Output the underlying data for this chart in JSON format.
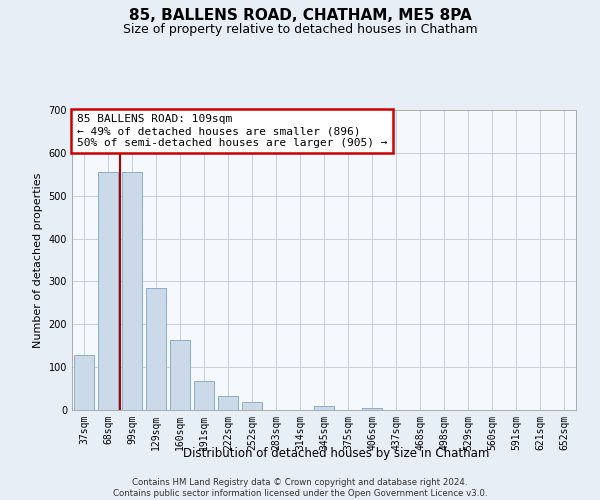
{
  "title": "85, BALLENS ROAD, CHATHAM, ME5 8PA",
  "subtitle": "Size of property relative to detached houses in Chatham",
  "xlabel": "Distribution of detached houses by size in Chatham",
  "ylabel": "Number of detached properties",
  "bar_labels": [
    "37sqm",
    "68sqm",
    "99sqm",
    "129sqm",
    "160sqm",
    "191sqm",
    "222sqm",
    "252sqm",
    "283sqm",
    "314sqm",
    "345sqm",
    "375sqm",
    "406sqm",
    "437sqm",
    "468sqm",
    "498sqm",
    "529sqm",
    "560sqm",
    "591sqm",
    "621sqm",
    "652sqm"
  ],
  "bar_values": [
    128,
    555,
    555,
    285,
    163,
    68,
    33,
    19,
    0,
    0,
    10,
    0,
    5,
    0,
    0,
    0,
    0,
    0,
    0,
    0,
    0
  ],
  "bar_color": "#ccd9e8",
  "bar_edge_color": "#8aafc8",
  "vline_x_index": 1.5,
  "vline_color": "#aa0000",
  "ylim": [
    0,
    700
  ],
  "yticks": [
    0,
    100,
    200,
    300,
    400,
    500,
    600,
    700
  ],
  "annotation_line1": "85 BALLENS ROAD: 109sqm",
  "annotation_line2": "← 49% of detached houses are smaller (896)",
  "annotation_line3": "50% of semi-detached houses are larger (905) →",
  "annotation_box_color": "#ffffff",
  "annotation_box_edge": "#cc0000",
  "footer_line1": "Contains HM Land Registry data © Crown copyright and database right 2024.",
  "footer_line2": "Contains public sector information licensed under the Open Government Licence v3.0.",
  "background_color": "#e8eef5",
  "plot_bg_color": "#f5f8fc",
  "grid_color": "#c5d0dc"
}
